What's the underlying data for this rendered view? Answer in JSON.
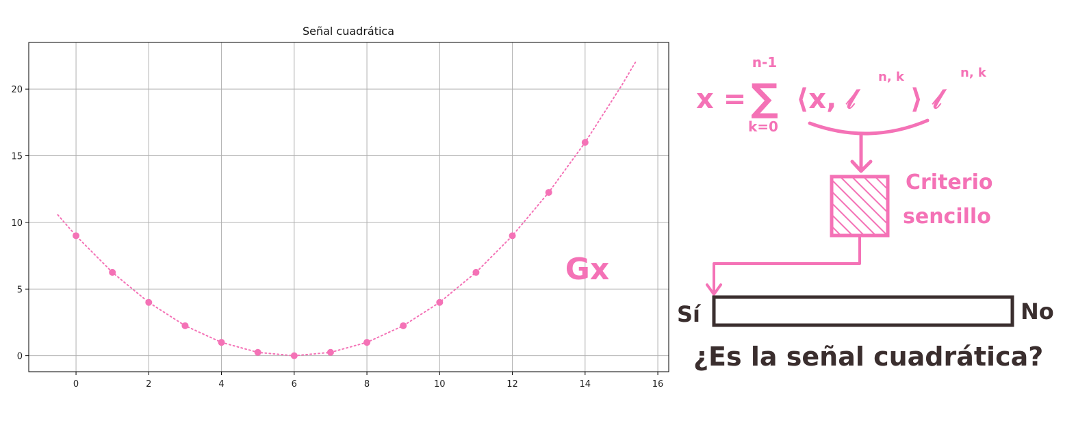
{
  "chart_data": {
    "type": "scatter",
    "title": "Señal cuadrática",
    "xlabel": "",
    "ylabel": "",
    "xlim": [
      -1.3,
      16.3
    ],
    "ylim": [
      -1.2,
      23.5
    ],
    "xticks": [
      "0",
      "2",
      "4",
      "6",
      "8",
      "10",
      "12",
      "14",
      "16"
    ],
    "yticks": [
      "0",
      "5",
      "10",
      "15",
      "20"
    ],
    "grid": true,
    "series": [
      {
        "style": "points",
        "x": [
          0,
          1,
          2,
          3,
          4,
          5,
          6,
          7,
          8,
          9,
          10,
          11,
          12,
          13,
          14
        ],
        "y": [
          9,
          6.25,
          4,
          2.25,
          1,
          0.25,
          0,
          0.25,
          1,
          2.25,
          4,
          6.25,
          9,
          12.25,
          16
        ]
      },
      {
        "style": "dotted-curve",
        "x": [
          -0.5,
          0,
          1,
          2,
          3,
          4,
          5,
          6,
          7,
          8,
          9,
          10,
          11,
          12,
          13,
          14,
          15,
          15.4
        ],
        "y": [
          10.5625,
          9,
          6.25,
          4,
          2.25,
          1,
          0.25,
          0,
          0.25,
          1,
          2.25,
          4,
          6.25,
          9,
          12.25,
          16,
          20.25,
          22.09
        ]
      }
    ],
    "color": "#f472b6",
    "annotation": "Gx"
  },
  "diagram": {
    "formula_lhs": "x =",
    "sum_upper": "n-1",
    "sum_lower": "k=0",
    "inner_product": "⟨x, 𝓁",
    "superscript1": "n, k",
    "inner_close": "⟩ 𝓁",
    "superscript2": "n, k",
    "criterion_line1": "Criterio",
    "criterion_line2": "sencillo",
    "yes_label": "Sí",
    "no_label": "No",
    "question": "¿Es la señal cuadrática?"
  },
  "colors": {
    "accent": "#f472b6",
    "ink": "#3a2e2e",
    "grid": "#b0b0b0"
  }
}
